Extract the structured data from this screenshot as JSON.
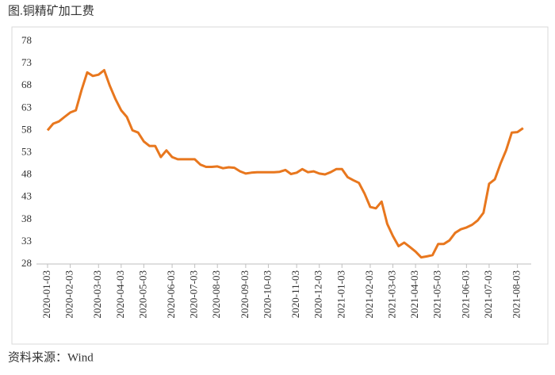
{
  "chart_data": {
    "type": "line",
    "title": "图.铜精矿加工费",
    "source": "资料来源：Wind",
    "categories": [
      "2020-01-03",
      null,
      null,
      null,
      "2020-02-03",
      null,
      null,
      null,
      null,
      "2020-03-03",
      null,
      null,
      null,
      "2020-04-03",
      null,
      null,
      null,
      "2020-05-03",
      null,
      null,
      null,
      null,
      "2020-06-03",
      null,
      null,
      null,
      "2020-07-03",
      null,
      null,
      null,
      "2020-08-03",
      null,
      null,
      null,
      null,
      "2020-09-03",
      null,
      null,
      null,
      "2020-10-03",
      null,
      null,
      null,
      null,
      "2020-11-03",
      null,
      null,
      null,
      "2020-12-03",
      null,
      null,
      null,
      "2021-01-03",
      null,
      null,
      null,
      null,
      "2021-02-03",
      null,
      null,
      null,
      "2021-03-03",
      null,
      null,
      null,
      "2021-04-03",
      null,
      null,
      null,
      "2021-05-03",
      null,
      null,
      null,
      null,
      "2021-06-03",
      null,
      null,
      null,
      "2021-07-03",
      null,
      null,
      null,
      null,
      "2021-08-03",
      null
    ],
    "series": [
      {
        "name": null,
        "color": "#e8771e",
        "values": [
          58,
          59.5,
          60,
          61,
          62,
          62.5,
          67,
          71,
          70.2,
          70.5,
          71.5,
          68,
          65,
          62.5,
          61,
          58,
          57.5,
          55.5,
          54.5,
          54.5,
          52,
          53.5,
          52,
          51.5,
          51.5,
          51.5,
          51.5,
          50.3,
          49.8,
          49.8,
          49.9,
          49.5,
          49.7,
          49.6,
          48.8,
          48.3,
          48.5,
          48.6,
          48.6,
          48.6,
          48.6,
          48.7,
          49.1,
          48.2,
          48.5,
          49.3,
          48.6,
          48.8,
          48.3,
          48.1,
          48.6,
          49.3,
          49.3,
          47.5,
          46.8,
          46.2,
          43.8,
          40.8,
          40.5,
          42,
          37,
          34.3,
          32,
          32.8,
          31.8,
          30.8,
          29.5,
          29.7,
          30,
          32.5,
          32.5,
          33.3,
          35,
          35.8,
          36.2,
          36.8,
          37.8,
          39.5,
          46,
          47,
          50.5,
          53.5,
          57.5,
          57.6,
          58.5
        ]
      }
    ],
    "ylim": [
      28,
      78
    ],
    "yticks": [
      28,
      33,
      38,
      43,
      48,
      53,
      58,
      63,
      68,
      73,
      78
    ],
    "grid": false
  }
}
